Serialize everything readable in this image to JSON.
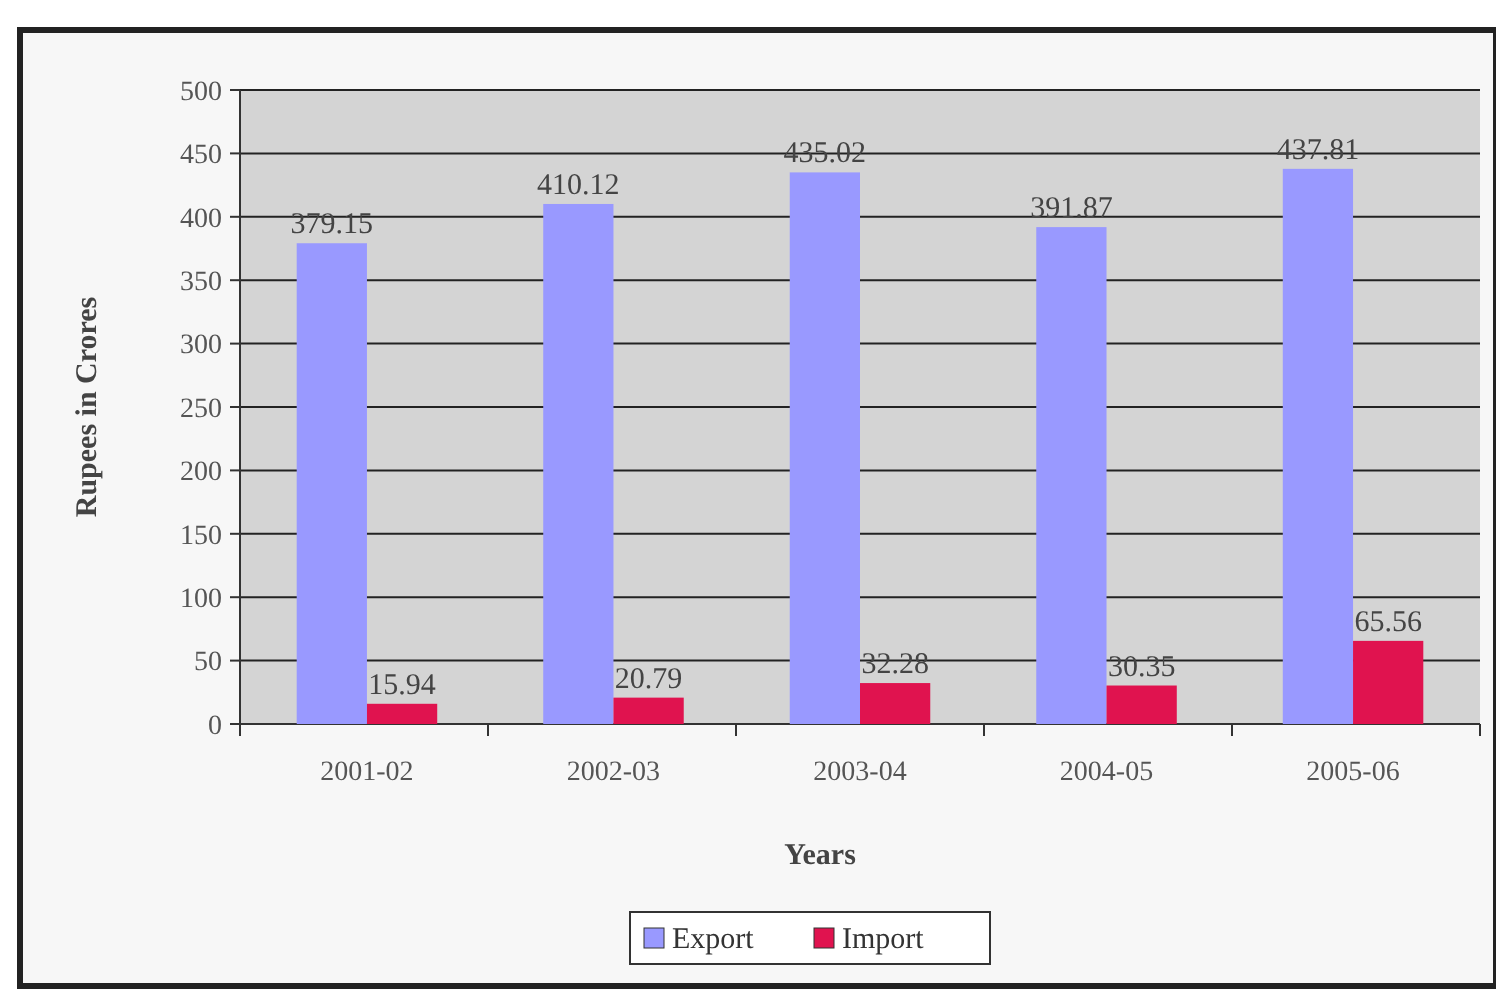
{
  "chart_data": {
    "type": "bar",
    "xlabel": "Years",
    "ylabel": "Rupees in Crores",
    "categories": [
      "2001-02",
      "2002-03",
      "2003-04",
      "2004-05",
      "2005-06"
    ],
    "series": [
      {
        "name": "Export",
        "color": "#9999ff",
        "values": [
          379.15,
          410.12,
          435.02,
          391.87,
          437.81
        ]
      },
      {
        "name": "Import",
        "color": "#e0134f",
        "values": [
          15.94,
          20.79,
          32.28,
          30.35,
          65.56
        ]
      }
    ],
    "ylim": [
      0,
      500
    ],
    "yticks": [
      0,
      50,
      100,
      150,
      200,
      250,
      300,
      350,
      400,
      450,
      500
    ],
    "grid": "y",
    "data_labels": true,
    "legend": "bottom"
  }
}
